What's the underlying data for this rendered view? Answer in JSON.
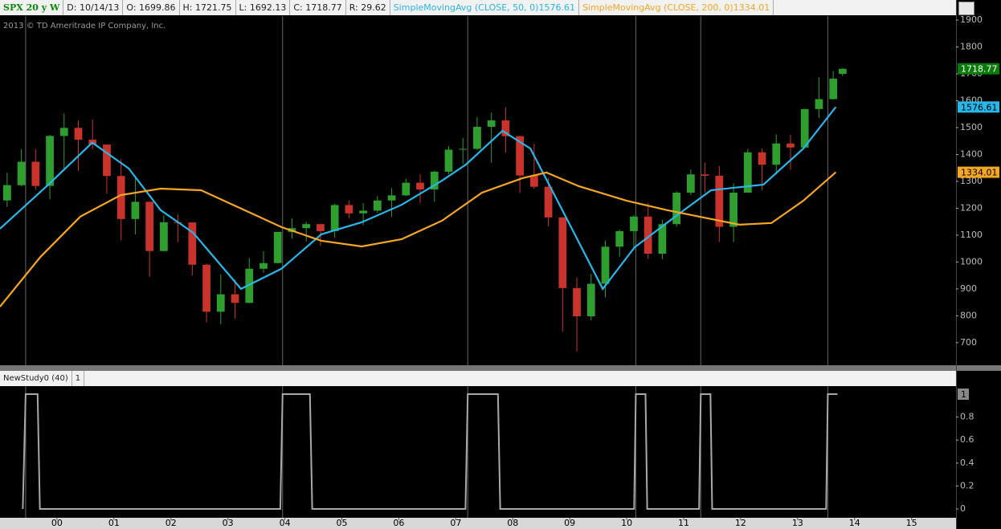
{
  "header": {
    "symbol": "SPX 20 y W",
    "date": "D: 10/14/13",
    "open": "O: 1699.86",
    "high": "H: 1721.75",
    "low": "L: 1692.13",
    "close": "C: 1718.77",
    "range": "R: 29.62",
    "copyright": "2013 © TD Ameritrade IP Company, Inc."
  },
  "chart_data": [
    {
      "type": "candlestick",
      "up_color": "#2e9e2e",
      "down_color": "#c8342b",
      "x": [
        1999.125,
        1999.375,
        1999.625,
        1999.875,
        2000.125,
        2000.375,
        2000.625,
        2000.875,
        2001.125,
        2001.375,
        2001.625,
        2001.875,
        2002.125,
        2002.375,
        2002.625,
        2002.875,
        2003.125,
        2003.375,
        2003.625,
        2003.875,
        2004.125,
        2004.375,
        2004.625,
        2004.875,
        2005.125,
        2005.375,
        2005.625,
        2005.875,
        2006.125,
        2006.375,
        2006.625,
        2006.875,
        2007.125,
        2007.375,
        2007.625,
        2007.875,
        2008.125,
        2008.375,
        2008.625,
        2008.875,
        2009.125,
        2009.375,
        2009.625,
        2009.875,
        2010.125,
        2010.375,
        2010.625,
        2010.875,
        2011.125,
        2011.375,
        2011.625,
        2011.875,
        2012.125,
        2012.375,
        2012.625,
        2012.875,
        2013.125,
        2013.375,
        2013.625,
        2013.79
      ],
      "open": [
        1229,
        1286,
        1373,
        1283,
        1469,
        1499,
        1455,
        1437,
        1320,
        1160,
        1224,
        1041,
        1148,
        1147,
        990,
        815,
        880,
        848,
        975,
        996,
        1112,
        1126,
        1141,
        1115,
        1212,
        1181,
        1191,
        1229,
        1248,
        1295,
        1270,
        1336,
        1418,
        1421,
        1503,
        1527,
        1468,
        1322,
        1280,
        1166,
        903,
        798,
        919,
        1057,
        1115,
        1169,
        1031,
        1141,
        1258,
        1326,
        1321,
        1131,
        1258,
        1408,
        1362,
        1441,
        1426,
        1569,
        1606,
        1699.86
      ],
      "high": [
        1332,
        1420,
        1420,
        1473,
        1553,
        1527,
        1530,
        1437,
        1383,
        1316,
        1226,
        1173,
        1177,
        1147,
        994,
        954,
        935,
        1015,
        1040,
        1112,
        1163,
        1150,
        1141,
        1217,
        1229,
        1219,
        1245,
        1275,
        1310,
        1326,
        1340,
        1431,
        1461,
        1540,
        1556,
        1576,
        1471,
        1440,
        1313,
        1167,
        943,
        956,
        1080,
        1120,
        1174,
        1220,
        1157,
        1263,
        1344,
        1370,
        1357,
        1293,
        1421,
        1422,
        1475,
        1474,
        1570,
        1687,
        1710,
        1721.75
      ],
      "low": [
        1205,
        1282,
        1268,
        1233,
        1339,
        1339,
        1420,
        1254,
        1081,
        1103,
        945,
        1040,
        1075,
        950,
        775,
        768,
        789,
        847,
        960,
        995,
        1087,
        1076,
        1060,
        1090,
        1163,
        1137,
        1183,
        1168,
        1245,
        1219,
        1224,
        1327,
        1364,
        1416,
        1370,
        1407,
        1257,
        1272,
        1133,
        741,
        667,
        783,
        869,
        1020,
        1044,
        1011,
        1010,
        1131,
        1249,
        1258,
        1075,
        1074,
        1258,
        1267,
        1325,
        1343,
        1426,
        1536,
        1604,
        1692.13
      ],
      "close": [
        1286,
        1373,
        1283,
        1469,
        1499,
        1455,
        1437,
        1320,
        1160,
        1224,
        1041,
        1148,
        1147,
        990,
        815,
        880,
        848,
        975,
        996,
        1112,
        1126,
        1141,
        1115,
        1212,
        1181,
        1191,
        1229,
        1248,
        1295,
        1270,
        1336,
        1418,
        1421,
        1503,
        1527,
        1468,
        1322,
        1280,
        1166,
        903,
        798,
        919,
        1057,
        1115,
        1169,
        1031,
        1141,
        1258,
        1326,
        1321,
        1131,
        1258,
        1408,
        1362,
        1441,
        1426,
        1569,
        1606,
        1682,
        1718.77
      ],
      "close_color": "#0a7a0a",
      "series": [
        {
          "name": "SimpleMovingAvg (CLOSE, 50, 0)",
          "color": "#29b6e8",
          "x": [
            1999.0,
            1999.85,
            2000.62,
            2001.26,
            2001.82,
            2002.39,
            2003.23,
            2003.94,
            2004.64,
            2005.35,
            2006.05,
            2006.76,
            2007.18,
            2007.82,
            2008.31,
            2008.87,
            2009.58,
            2010.14,
            2010.85,
            2011.48,
            2012.4,
            2013.1,
            2013.67
          ],
          "values": [
            1124,
            1288,
            1444,
            1348,
            1193,
            1109,
            900,
            975,
            1103,
            1148,
            1213,
            1303,
            1363,
            1488,
            1422,
            1193,
            900,
            1055,
            1169,
            1267,
            1288,
            1422,
            1576.61
          ]
        },
        {
          "name": "SimpleMovingAvg (CLOSE, 200, 0)",
          "color": "#f5a623",
          "x": [
            1999.0,
            1999.71,
            2000.41,
            2001.12,
            2001.82,
            2002.53,
            2003.23,
            2003.94,
            2004.64,
            2005.35,
            2006.05,
            2006.76,
            2007.46,
            2008.17,
            2008.59,
            2009.16,
            2010.0,
            2010.71,
            2011.41,
            2011.98,
            2012.54,
            2013.1,
            2013.67
          ],
          "values": [
            834,
            1019,
            1169,
            1249,
            1273,
            1267,
            1199,
            1130,
            1079,
            1058,
            1085,
            1154,
            1258,
            1312,
            1333,
            1282,
            1228,
            1193,
            1163,
            1139,
            1145,
            1228,
            1334.01
          ]
        }
      ],
      "xlim": [
        1999,
        2015.78
      ],
      "ylim": [
        616,
        1915
      ],
      "yticks": [
        700,
        800,
        900,
        1000,
        1100,
        1200,
        1300,
        1400,
        1500,
        1600,
        1700,
        1800,
        1900
      ]
    },
    {
      "type": "line",
      "title": "NewStudy0 (40)",
      "color": "#a8a8a8",
      "x": [
        1999.4,
        1999.45,
        1999.66,
        1999.7,
        2003.92,
        2003.96,
        2004.44,
        2004.48,
        2007.17,
        2007.21,
        2007.74,
        2007.78,
        2010.13,
        2010.16,
        2010.33,
        2010.36,
        2011.27,
        2011.3,
        2011.47,
        2011.5,
        2013.5,
        2013.53,
        2013.7
      ],
      "values": [
        0,
        1,
        1,
        0,
        0,
        1,
        1,
        0,
        0,
        1,
        1,
        0,
        0,
        1,
        1,
        0,
        0,
        1,
        1,
        0,
        0,
        1,
        1
      ],
      "xlim": [
        1999,
        2015.78
      ],
      "ylim": [
        -0.077,
        1.07
      ],
      "yticks": [
        0,
        0.2,
        0.4,
        0.6,
        0.8
      ],
      "xticks": [
        {
          "value": 2000,
          "label": "00"
        },
        {
          "value": 2001,
          "label": "01"
        },
        {
          "value": 2002,
          "label": "02"
        },
        {
          "value": 2003,
          "label": "03"
        },
        {
          "value": 2004,
          "label": "04"
        },
        {
          "value": 2005,
          "label": "05"
        },
        {
          "value": 2006,
          "label": "06"
        },
        {
          "value": 2007,
          "label": "07"
        },
        {
          "value": 2008,
          "label": "08"
        },
        {
          "value": 2009,
          "label": "09"
        },
        {
          "value": 2010,
          "label": "10"
        },
        {
          "value": 2011,
          "label": "11"
        },
        {
          "value": 2012,
          "label": "12"
        },
        {
          "value": 2013,
          "label": "13"
        },
        {
          "value": 2014,
          "label": "14"
        },
        {
          "value": 2015,
          "label": "15"
        }
      ]
    }
  ]
}
